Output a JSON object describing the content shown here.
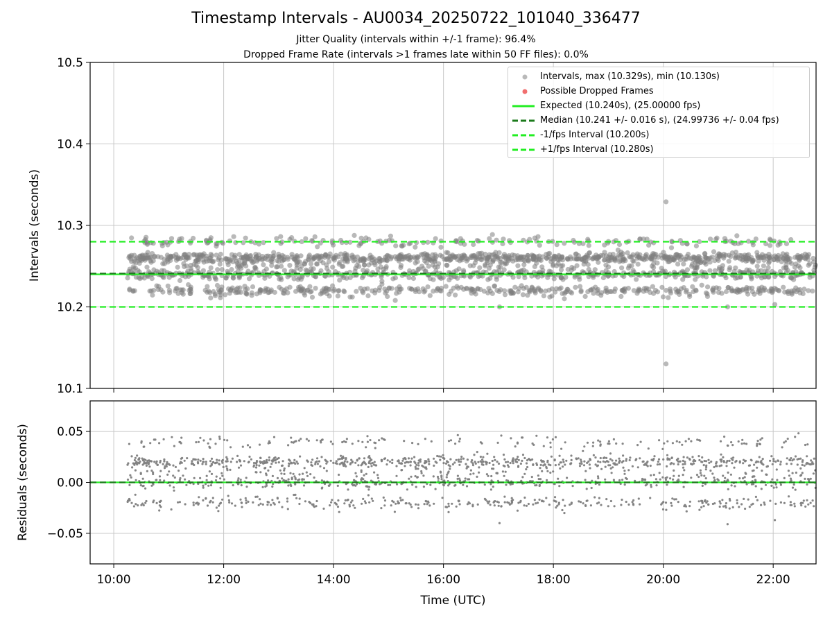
{
  "title": "Timestamp Intervals - AU0034_20250722_101040_336477",
  "subtitle_1": "Jitter Quality (intervals within +/-1 frame): 96.4%",
  "subtitle_2": "Dropped Frame Rate (intervals >1 frames late within 50 FF files): 0.0%",
  "colors": {
    "points": "#808080",
    "dropped": "#ee5555",
    "expected": "#22ee22",
    "median": "#1b7a1b",
    "fps_bound": "#22ee22",
    "grid": "#c8c8c8"
  },
  "legend": {
    "placement": "top-right",
    "items": [
      {
        "label": "Intervals, max (10.329s), min (10.130s)",
        "kind": "marker",
        "color": "#808080"
      },
      {
        "label": "Possible Dropped Frames",
        "kind": "marker",
        "color": "#ee5555"
      },
      {
        "label": "Expected (10.240s), (25.00000 fps)",
        "kind": "solid",
        "color": "#22ee22"
      },
      {
        "label": "Median (10.241 +/- 0.016 s), (24.99736 +/- 0.04 fps)",
        "kind": "dashed",
        "color": "#1b7a1b"
      },
      {
        "label": "-1/fps Interval (10.200s)",
        "kind": "dashed",
        "color": "#22ee22"
      },
      {
        "label": "+1/fps Interval (10.280s)",
        "kind": "dashed",
        "color": "#22ee22"
      }
    ]
  },
  "chart_data": [
    {
      "type": "scatter",
      "ylabel": "Intervals (seconds)",
      "xlabel": "",
      "xlim_hours": [
        9.57,
        22.78
      ],
      "ylim": [
        10.1,
        10.5
      ],
      "yticks": [
        10.1,
        10.2,
        10.3,
        10.4,
        10.5
      ],
      "ytick_labels": [
        "10.1",
        "10.2",
        "10.3",
        "10.4",
        "10.5"
      ],
      "grid": true,
      "hlines": [
        {
          "name": "Expected",
          "y": 10.24,
          "style": "solid"
        },
        {
          "name": "Median",
          "y": 10.241,
          "style": "dashed"
        },
        {
          "name": "-1/fps Interval",
          "y": 10.2,
          "style": "dashed"
        },
        {
          "name": "+1/fps Interval",
          "y": 10.28,
          "style": "dashed"
        }
      ],
      "series": [
        {
          "name": "Intervals, max (10.329s), min (10.130s)",
          "x_range_hours": [
            10.25,
            22.78
          ],
          "levels": [
            {
              "y": 10.26,
              "share": 0.4
            },
            {
              "y": 10.24,
              "share": 0.23
            },
            {
              "y": 10.22,
              "share": 0.2
            },
            {
              "y": 10.28,
              "share": 0.09
            },
            {
              "y": 10.25,
              "share": 0.08
            }
          ],
          "jitter_sd": 0.003,
          "outliers": [
            {
              "x": 20.05,
              "y": 10.329
            },
            {
              "x": 20.05,
              "y": 10.13
            },
            {
              "x": 17.02,
              "y": 10.2
            },
            {
              "x": 21.17,
              "y": 10.2
            },
            {
              "x": 22.03,
              "y": 10.203
            },
            {
              "x": 18.2,
              "y": 10.21
            }
          ]
        }
      ]
    },
    {
      "type": "scatter",
      "ylabel": "Residuals (seconds)",
      "xlabel": "Time (UTC)",
      "xlim_hours": [
        9.57,
        22.78
      ],
      "ylim": [
        -0.08,
        0.08
      ],
      "yticks": [
        -0.05,
        0.0,
        0.05
      ],
      "ytick_labels": [
        "−0.05",
        "0.00",
        "0.05"
      ],
      "xticks_hours": [
        10,
        12,
        14,
        16,
        18,
        20,
        22
      ],
      "xtick_labels": [
        "10:00",
        "12:00",
        "14:00",
        "16:00",
        "18:00",
        "20:00",
        "22:00"
      ],
      "grid": true,
      "hlines": [
        {
          "name": "Expected",
          "y": 0.0,
          "style": "solid"
        },
        {
          "name": "Median",
          "y": 0.0,
          "style": "dashed"
        }
      ],
      "series": [
        {
          "name": "Residuals",
          "x_range_hours": [
            10.25,
            22.78
          ],
          "levels": [
            {
              "y": 0.02,
              "share": 0.4
            },
            {
              "y": 0.0,
              "share": 0.23
            },
            {
              "y": -0.02,
              "share": 0.2
            },
            {
              "y": 0.04,
              "share": 0.09
            },
            {
              "y": 0.01,
              "share": 0.08
            }
          ],
          "jitter_sd": 0.003,
          "outliers": [
            {
              "x": 17.02,
              "y": -0.04
            },
            {
              "x": 21.17,
              "y": -0.041
            },
            {
              "x": 22.03,
              "y": -0.037
            },
            {
              "x": 18.2,
              "y": -0.03
            }
          ]
        }
      ]
    }
  ]
}
